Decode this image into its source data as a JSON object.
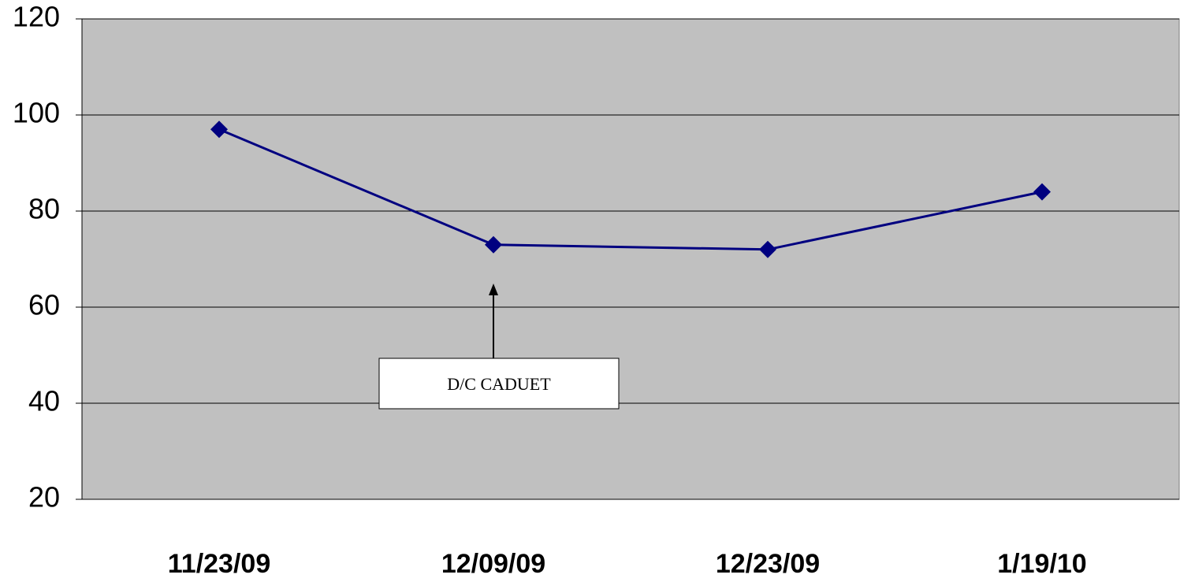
{
  "chart_data": {
    "type": "line",
    "categories": [
      "11/23/09",
      "12/09/09",
      "12/23/09",
      "1/19/10"
    ],
    "values": [
      97,
      73,
      72,
      84
    ],
    "color": "#000080",
    "ylim": [
      20,
      120
    ],
    "yticks": [
      20,
      40,
      60,
      80,
      100,
      120
    ],
    "grid": true,
    "annotation": "D/C CADUET"
  }
}
